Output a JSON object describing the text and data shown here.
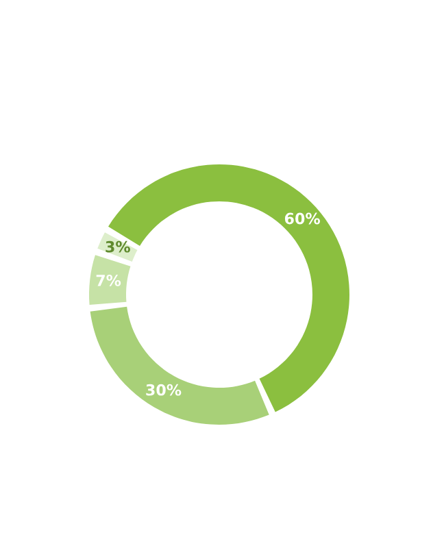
{
  "chart_data": {
    "type": "donut",
    "categories": [
      null,
      null,
      null,
      null
    ],
    "values": [
      60,
      30,
      7,
      3
    ],
    "value_labels": [
      "60%",
      "30%",
      "7%",
      "3%"
    ],
    "colors": [
      "#8bbf3f",
      "#a8d078",
      "#c6e2a6",
      "#ddeecb"
    ]
  }
}
